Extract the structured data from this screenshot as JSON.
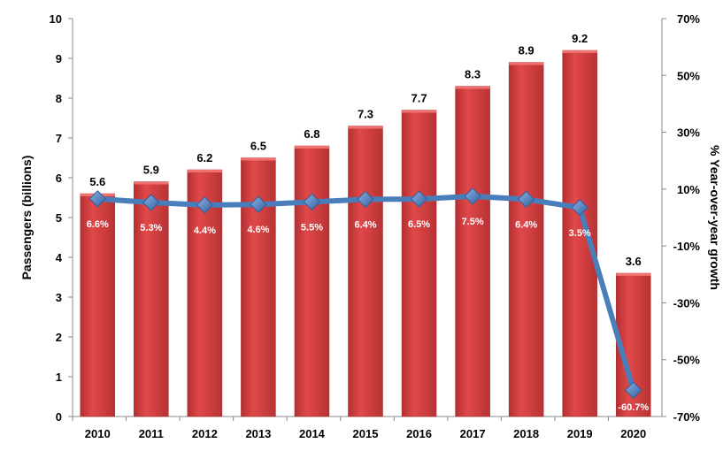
{
  "chart_data": {
    "type": "bar+line",
    "categories": [
      "2010",
      "2011",
      "2012",
      "2013",
      "2014",
      "2015",
      "2016",
      "2017",
      "2018",
      "2019",
      "2020"
    ],
    "series": [
      {
        "axis": "left",
        "type": "bar",
        "values": [
          5.6,
          5.9,
          6.2,
          6.5,
          6.8,
          7.3,
          7.7,
          8.3,
          8.9,
          9.2,
          3.6
        ],
        "labels": [
          "5.6",
          "5.9",
          "6.2",
          "6.5",
          "6.8",
          "7.3",
          "7.7",
          "8.3",
          "8.9",
          "9.2",
          "3.6"
        ]
      },
      {
        "axis": "right",
        "type": "line",
        "values": [
          6.6,
          5.3,
          4.4,
          4.6,
          5.5,
          6.4,
          6.5,
          7.5,
          6.4,
          3.5,
          -60.7
        ],
        "labels": [
          "6.6%",
          "5.3%",
          "4.4%",
          "4.6%",
          "5.5%",
          "6.4%",
          "6.5%",
          "7.5%",
          "6.4%",
          "3.5%",
          "-60.7%"
        ]
      }
    ],
    "ylabel": "Passengers (billions)",
    "y2label": "% Year-over-year growth",
    "ylim": [
      0,
      10
    ],
    "y2lim": [
      -70,
      70
    ],
    "yticks": [
      "0",
      "1",
      "2",
      "3",
      "4",
      "5",
      "6",
      "7",
      "8",
      "9",
      "10"
    ],
    "y2ticks": [
      "70%",
      "50%",
      "30%",
      "10%",
      "-10%",
      "-30%",
      "-50%",
      "-70%"
    ],
    "grid": false,
    "colors": {
      "bar": "#c0393b",
      "bar_light": "#e8504f",
      "line": "#4a7ebb",
      "marker": "#3a6fb5"
    }
  }
}
